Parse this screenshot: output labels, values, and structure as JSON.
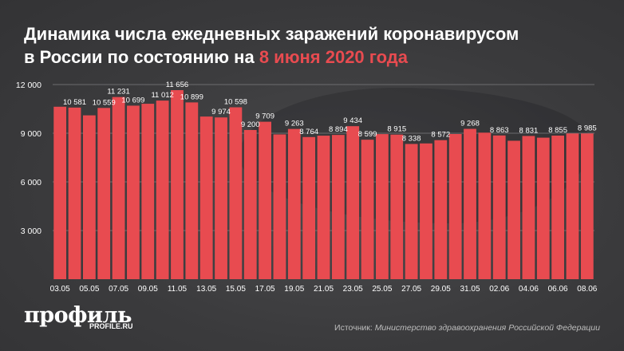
{
  "header": {
    "title_line1": "Динамика числа ежедневных заражений коронавирусом",
    "title_line2_prefix": "в России по состоянию на ",
    "title_line2_accent": "8 июня 2020 года"
  },
  "brand": {
    "logo": "профиль",
    "site": "PROFILE.RU"
  },
  "footer": {
    "source_prefix": "Источник: ",
    "source_text": "Министерство здравоохранения Российской Федерации"
  },
  "colors": {
    "bar": "#e84b50",
    "accent": "#e84b50",
    "text": "#ffffff",
    "grid": "#8e8e90"
  },
  "chart_data": {
    "type": "bar",
    "title": "Динамика числа ежедневных заражений коронавирусом в России по состоянию на 8 июня 2020 года",
    "xlabel": "",
    "ylabel": "",
    "ylim": [
      0,
      12000
    ],
    "yticks": [
      3000,
      6000,
      9000,
      12000
    ],
    "ytick_labels": [
      "3 000",
      "6 000",
      "9 000",
      "12 000"
    ],
    "grid": true,
    "categories": [
      "03.05",
      "04.05",
      "05.05",
      "06.05",
      "07.05",
      "08.05",
      "09.05",
      "10.05",
      "11.05",
      "12.05",
      "13.05",
      "14.05",
      "15.05",
      "16.05",
      "17.05",
      "18.05",
      "19.05",
      "20.05",
      "21.05",
      "22.05",
      "23.05",
      "24.05",
      "25.05",
      "26.05",
      "27.05",
      "28.05",
      "29.05",
      "30.05",
      "31.05",
      "01.06",
      "02.06",
      "03.06",
      "04.06",
      "05.06",
      "06.06",
      "07.06",
      "08.06"
    ],
    "shown_tick_labels": [
      "03.05",
      "05.05",
      "07.05",
      "09.05",
      "11.05",
      "13.05",
      "15.05",
      "17.05",
      "19.05",
      "21.05",
      "23.05",
      "25.05",
      "27.05",
      "29.05",
      "31.05",
      "02.06",
      "04.06",
      "06.06",
      "08.06"
    ],
    "values": [
      10633,
      10581,
      10102,
      10559,
      11231,
      10699,
      10817,
      11012,
      11656,
      10899,
      10028,
      9974,
      10598,
      9200,
      9709,
      8926,
      9263,
      8764,
      8849,
      8894,
      9434,
      8599,
      8946,
      8915,
      8338,
      8371,
      8572,
      8952,
      9268,
      9035,
      8863,
      8536,
      8831,
      8726,
      8855,
      8984,
      8985
    ],
    "data_labels": [
      null,
      "10 581",
      null,
      "10 559",
      "11 231",
      "10 699",
      null,
      "11 012",
      "11 656",
      "10 899",
      null,
      "9 974",
      "10 598",
      "9 200",
      "9 709",
      null,
      "9 263",
      "8 764",
      null,
      "8 894",
      "9 434",
      "8 599",
      null,
      "8 915",
      "8 338",
      null,
      "8 572",
      null,
      "9 268",
      null,
      "8 863",
      null,
      "8 831",
      null,
      "8 855",
      null,
      "8 985"
    ]
  }
}
